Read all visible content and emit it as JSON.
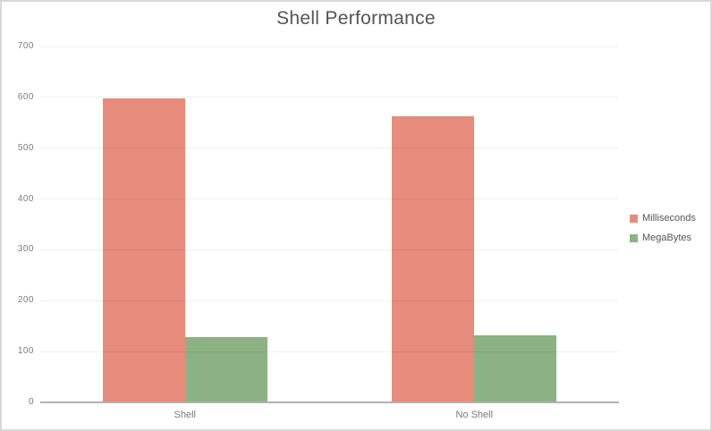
{
  "window": {
    "background": "#ffffff",
    "border_color": "#d9d9d9"
  },
  "chart_data": {
    "type": "bar",
    "title": "Shell Performance",
    "categories": [
      "Shell",
      "No Shell"
    ],
    "series": [
      {
        "name": "Milliseconds",
        "color": "#e78b7d",
        "values": [
          598,
          562
        ]
      },
      {
        "name": "MegaBytes",
        "color": "#8cb283",
        "values": [
          129,
          132
        ]
      }
    ],
    "ylim": [
      0,
      700
    ],
    "yticks": [
      0,
      100,
      200,
      300,
      400,
      500,
      600,
      700
    ],
    "xlabel": "",
    "ylabel": "",
    "grid": true,
    "legend_position": "right",
    "title_color": "#4f555b",
    "tick_label_color": "#7a7a7a",
    "category_label_color": "#7a7a7a",
    "legend_text_color": "#4f555b",
    "gridline_color": "rgba(20,20,20,0.065)",
    "axis_line_color": "#b1b1b1"
  }
}
